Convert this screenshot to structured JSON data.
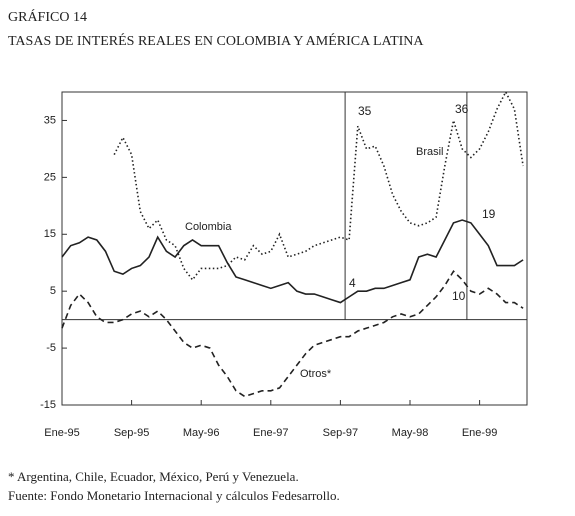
{
  "chart_data": {
    "type": "line",
    "title": "GRÁFICO 14",
    "subtitle": "TASAS DE INTERÉS REALES EN COLOMBIA Y AMÉRICA LATINA",
    "categories": [
      "Ene-95",
      null,
      null,
      null,
      null,
      null,
      null,
      null,
      "Sep-95",
      null,
      null,
      null,
      null,
      null,
      null,
      null,
      "May-96",
      null,
      null,
      null,
      null,
      null,
      null,
      null,
      "Ene-97",
      null,
      null,
      null,
      null,
      null,
      null,
      null,
      "Sep-97",
      null,
      null,
      null,
      null,
      null,
      null,
      null,
      "May-98",
      null,
      null,
      null,
      null,
      null,
      null,
      null,
      "Ene-99",
      null,
      null,
      null,
      null,
      null
    ],
    "series": [
      {
        "name": "Colombia",
        "color": "#222",
        "dash": "solid",
        "values": [
          11,
          13,
          13.5,
          14.5,
          14,
          12,
          8.5,
          8,
          9,
          9.5,
          11,
          14.5,
          12,
          11,
          13,
          14,
          13,
          13,
          13,
          10,
          7.5,
          7,
          6.5,
          6,
          5.5,
          6,
          6.5,
          5,
          4.5,
          4.5,
          4,
          3.5,
          3,
          4,
          5,
          5,
          5.5,
          5.5,
          6,
          6.5,
          7,
          11,
          11.5,
          11,
          14,
          17,
          17.5,
          17,
          15,
          13,
          9.5,
          9.5,
          9.5,
          10.5
        ]
      },
      {
        "name": "Brasil",
        "color": "#222",
        "dash": "dotted",
        "values": [
          null,
          null,
          null,
          null,
          null,
          null,
          29,
          32,
          29,
          19,
          16,
          17.5,
          14,
          13,
          9,
          7,
          9,
          9,
          9,
          9.5,
          11,
          10.5,
          13,
          11.5,
          12,
          15,
          11,
          11.5,
          12,
          13,
          13.5,
          14,
          14.5,
          14,
          34,
          30,
          30.5,
          27,
          22,
          19,
          17,
          16.5,
          17,
          18,
          27,
          35,
          30,
          28.5,
          30,
          33,
          37,
          40,
          37,
          27
        ]
      },
      {
        "name": "Otros*",
        "color": "#222",
        "dash": "dashed",
        "values": [
          -1.5,
          2.5,
          4.5,
          3,
          0.5,
          -0.5,
          -0.5,
          0,
          1,
          1.5,
          0.5,
          1.5,
          0,
          -2,
          -4,
          -5,
          -4.5,
          -5,
          -8,
          -10,
          -12.5,
          -13.5,
          -13,
          -12.5,
          -12.5,
          -12,
          -10,
          -8,
          -6,
          -4.5,
          -4,
          -3.5,
          -3,
          -3,
          -2,
          -1.5,
          -1,
          -0.5,
          0.5,
          1,
          0.5,
          1,
          2.5,
          4,
          6,
          8.5,
          7,
          5,
          4.5,
          5.5,
          4.5,
          3,
          3,
          2
        ]
      }
    ],
    "annotations": [
      "35",
      "36",
      "4",
      "10",
      "19"
    ],
    "ylim": [
      -15,
      40
    ],
    "yticks": [
      -15,
      -5,
      5,
      15,
      25,
      35
    ],
    "footnote": "* Argentina, Chile, Ecuador, México, Perú y Venezuela.",
    "source": "Fuente: Fondo Monetario Internacional y cálculos Fedesarrollo."
  }
}
